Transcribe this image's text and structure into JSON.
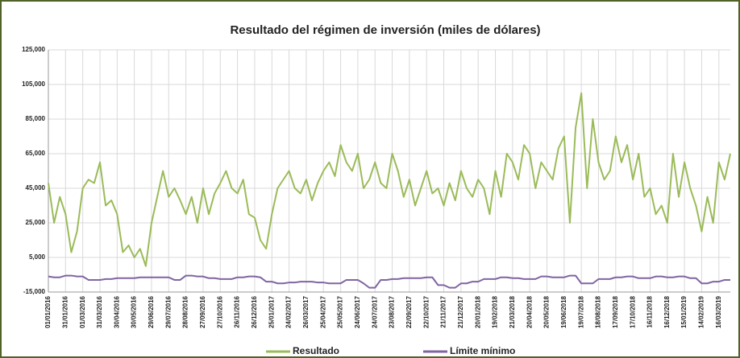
{
  "chart_data": {
    "type": "line",
    "title": "Resultado del régimen de inversión (miles de dólares)",
    "categories": [
      "01/01/2016",
      null,
      null,
      "31/01/2016",
      null,
      null,
      "01/03/2016",
      null,
      null,
      "31/03/2016",
      null,
      null,
      "30/04/2016",
      null,
      null,
      "30/05/2016",
      null,
      null,
      "29/06/2016",
      null,
      null,
      "29/07/2016",
      null,
      null,
      "28/08/2016",
      null,
      null,
      "27/09/2016",
      null,
      null,
      "27/10/2016",
      null,
      null,
      "26/11/2016",
      null,
      null,
      "26/12/2016",
      null,
      null,
      "25/01/2017",
      null,
      null,
      "24/02/2017",
      null,
      null,
      "26/03/2017",
      null,
      null,
      "25/04/2017",
      null,
      null,
      "25/05/2017",
      null,
      null,
      "24/06/2017",
      null,
      null,
      "24/07/2017",
      null,
      null,
      "23/08/2017",
      null,
      null,
      "22/09/2017",
      null,
      null,
      "22/10/2017",
      null,
      null,
      "21/11/2017",
      null,
      null,
      "21/12/2017",
      null,
      null,
      "20/01/2018",
      null,
      null,
      "19/02/2018",
      null,
      null,
      "21/03/2018",
      null,
      null,
      "20/04/2018",
      null,
      null,
      "20/05/2018",
      null,
      null,
      "19/06/2018",
      null,
      null,
      "19/07/2018",
      null,
      null,
      "18/08/2018",
      null,
      null,
      "17/09/2018",
      null,
      null,
      "17/10/2018",
      null,
      null,
      "16/11/2018",
      null,
      null,
      "16/12/2018",
      null,
      null,
      "15/01/2019",
      null,
      null,
      "14/02/2019",
      null,
      null,
      "16/03/2019",
      null,
      null
    ],
    "series": [
      {
        "name": "Resultado",
        "color": "#9bbb59",
        "values": [
          48000,
          25000,
          40000,
          30000,
          8000,
          20000,
          45000,
          50000,
          48000,
          60000,
          35000,
          38000,
          30000,
          8000,
          12000,
          5000,
          10000,
          0,
          25000,
          40000,
          55000,
          40000,
          45000,
          38000,
          30000,
          40000,
          25000,
          45000,
          30000,
          42000,
          48000,
          55000,
          45000,
          42000,
          50000,
          30000,
          28000,
          15000,
          10000,
          30000,
          45000,
          50000,
          55000,
          45000,
          42000,
          50000,
          38000,
          48000,
          55000,
          60000,
          52000,
          70000,
          60000,
          55000,
          65000,
          45000,
          50000,
          60000,
          48000,
          45000,
          65000,
          55000,
          40000,
          50000,
          35000,
          45000,
          55000,
          42000,
          45000,
          35000,
          48000,
          38000,
          55000,
          45000,
          40000,
          50000,
          45000,
          30000,
          55000,
          40000,
          65000,
          60000,
          50000,
          70000,
          65000,
          45000,
          60000,
          55000,
          50000,
          68000,
          75000,
          25000,
          80000,
          100000,
          45000,
          85000,
          60000,
          50000,
          55000,
          75000,
          60000,
          70000,
          50000,
          65000,
          40000,
          45000,
          30000,
          35000,
          25000,
          65000,
          40000,
          60000,
          45000,
          35000,
          20000,
          40000,
          25000,
          60000,
          50000,
          65000
        ]
      },
      {
        "name": "Límite mínimo",
        "color": "#8064a2",
        "values": [
          -6000,
          -6500,
          -6500,
          -5500,
          -5500,
          -6000,
          -6000,
          -8000,
          -8000,
          -8000,
          -7500,
          -7500,
          -7000,
          -7000,
          -7000,
          -7000,
          -6500,
          -6500,
          -6500,
          -6500,
          -6500,
          -6500,
          -8000,
          -8000,
          -5500,
          -5500,
          -6000,
          -6000,
          -7000,
          -7000,
          -7500,
          -7500,
          -7500,
          -6500,
          -6500,
          -6000,
          -6000,
          -6500,
          -9000,
          -9000,
          -10000,
          -10000,
          -9500,
          -9500,
          -9000,
          -9000,
          -9000,
          -9500,
          -9500,
          -10000,
          -10000,
          -10000,
          -8000,
          -8000,
          -8000,
          -10000,
          -12500,
          -12500,
          -8000,
          -8000,
          -7500,
          -7500,
          -7000,
          -7000,
          -7000,
          -7000,
          -6500,
          -6500,
          -11000,
          -11000,
          -12500,
          -12500,
          -10000,
          -10000,
          -9000,
          -9000,
          -7500,
          -7500,
          -7500,
          -6500,
          -6500,
          -7000,
          -7000,
          -7500,
          -7500,
          -7500,
          -6000,
          -6000,
          -6500,
          -6500,
          -6500,
          -5500,
          -5500,
          -10000,
          -10000,
          -10000,
          -7500,
          -7500,
          -7500,
          -6500,
          -6500,
          -6000,
          -6000,
          -7000,
          -7000,
          -7000,
          -6000,
          -6000,
          -6500,
          -6500,
          -6000,
          -6000,
          -7000,
          -7000,
          -10000,
          -10000,
          -9000,
          -9000,
          -8000,
          -8000
        ]
      }
    ],
    "ylim": [
      -15000,
      125000
    ],
    "yticks": [
      {
        "value": -15000,
        "label": "-15,000"
      },
      {
        "value": 5000,
        "label": "5,000"
      },
      {
        "value": 25000,
        "label": "25,000"
      },
      {
        "value": 45000,
        "label": "45,000"
      },
      {
        "value": 65000,
        "label": "65,000"
      },
      {
        "value": 85000,
        "label": "85,000"
      },
      {
        "value": 105000,
        "label": "105,000"
      },
      {
        "value": 125000,
        "label": "125,000"
      }
    ],
    "grid": true,
    "legend": "bottom"
  }
}
